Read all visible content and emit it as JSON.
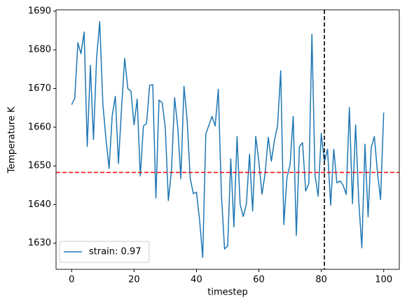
{
  "chart_data": {
    "type": "line",
    "xlabel": "timestep",
    "ylabel": "Temperature K",
    "x": [
      0,
      1,
      2,
      3,
      4,
      5,
      6,
      7,
      8,
      9,
      10,
      11,
      12,
      13,
      14,
      15,
      16,
      17,
      18,
      19,
      20,
      21,
      22,
      23,
      24,
      25,
      26,
      27,
      28,
      29,
      30,
      31,
      32,
      33,
      34,
      35,
      36,
      37,
      38,
      39,
      40,
      41,
      42,
      43,
      44,
      45,
      46,
      47,
      48,
      49,
      50,
      51,
      52,
      53,
      54,
      55,
      56,
      57,
      58,
      59,
      60,
      61,
      62,
      63,
      64,
      65,
      66,
      67,
      68,
      69,
      70,
      71,
      72,
      73,
      74,
      75,
      76,
      77,
      78,
      79,
      80,
      81,
      82,
      83,
      84,
      85,
      86,
      87,
      88,
      89,
      90,
      91,
      92,
      93,
      94,
      95,
      96,
      97,
      98,
      99,
      100
    ],
    "series": [
      {
        "name": "strain: 0.97",
        "color": "#1f77b4",
        "values": [
          1665.8,
          1667.5,
          1681.8,
          1679,
          1684.6,
          1655,
          1676,
          1656.8,
          1678,
          1687.3,
          1666,
          1657,
          1649.3,
          1663,
          1668,
          1650.6,
          1665,
          1677.8,
          1670,
          1669.3,
          1660.6,
          1667.3,
          1647.4,
          1660.3,
          1661,
          1670.8,
          1671,
          1641.7,
          1667,
          1666.4,
          1660,
          1641,
          1649,
          1667.6,
          1660,
          1646.7,
          1670.6,
          1662,
          1646.8,
          1642.8,
          1643.2,
          1636,
          1626.3,
          1658.3,
          1660.5,
          1662.8,
          1660.3,
          1669.8,
          1642.5,
          1628.5,
          1629.3,
          1651.8,
          1634.2,
          1657.6,
          1640,
          1636.9,
          1640.2,
          1653,
          1638.3,
          1657.6,
          1651,
          1642.7,
          1648,
          1657.4,
          1651.2,
          1656.6,
          1660.5,
          1674.6,
          1634.8,
          1647,
          1650.3,
          1662.8,
          1632,
          1655,
          1656,
          1643.5,
          1645.4,
          1684,
          1647.5,
          1642.2,
          1658.4,
          1651,
          1654.3,
          1639.8,
          1654.3,
          1645.6,
          1646.1,
          1645,
          1642.6,
          1665.1,
          1640.2,
          1660.6,
          1641,
          1628.8,
          1655.6,
          1636.8,
          1654.7,
          1657.6,
          1648.4,
          1641.3,
          1663.8
        ]
      }
    ],
    "reference_lines": [
      {
        "axis": "y",
        "value": 1648.3,
        "color": "red"
      },
      {
        "axis": "x",
        "value": 81,
        "color": "black"
      }
    ],
    "xlim": [
      -5,
      105
    ],
    "ylim": [
      1623.25,
      1690.35
    ],
    "xticks": [
      0,
      20,
      40,
      60,
      80,
      100
    ],
    "yticks": [
      1630,
      1640,
      1650,
      1660,
      1670,
      1680,
      1690
    ],
    "legend": "lower left",
    "grid": false
  }
}
